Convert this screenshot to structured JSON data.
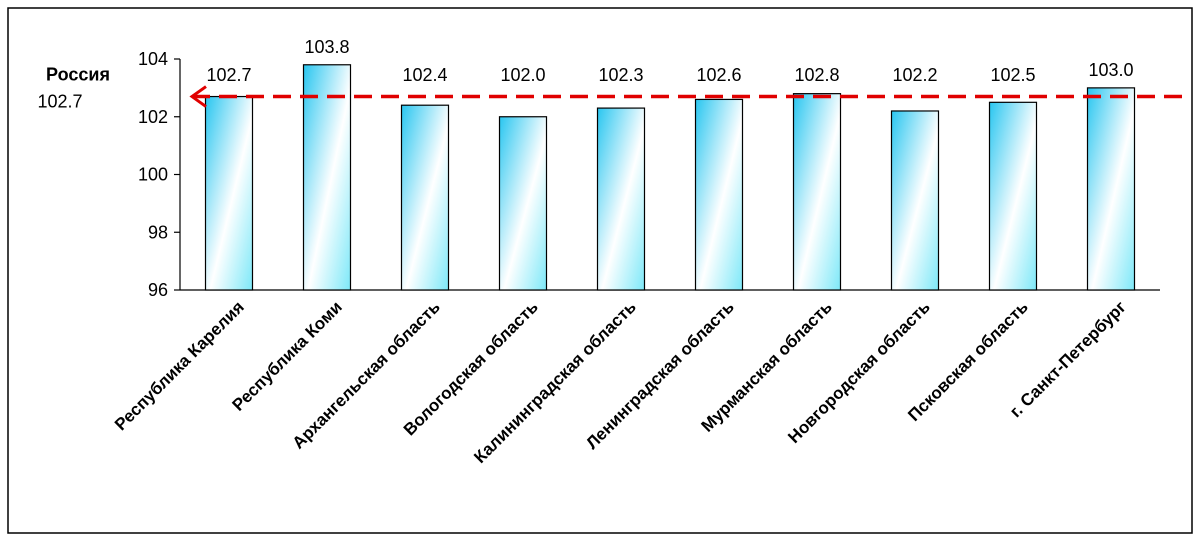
{
  "chart_data": {
    "type": "bar",
    "categories": [
      "Республика Карелия",
      "Республика Коми",
      "Архангельская область",
      "Вологодская область",
      "Калининградская область",
      "Ленинградская область",
      "Мурманская область",
      "Новгородская область",
      "Псковская область",
      "г. Санкт-Петербург"
    ],
    "values": [
      102.7,
      103.8,
      102.4,
      102.0,
      102.3,
      102.6,
      102.8,
      102.2,
      102.5,
      103.0
    ],
    "data_labels": [
      "102.7",
      "103.8",
      "102.4",
      "102.0",
      "102.3",
      "102.6",
      "102.8",
      "102.2",
      "102.5",
      "103.0"
    ],
    "ylim": [
      96,
      104
    ],
    "yticks": [
      96,
      98,
      100,
      102,
      104
    ],
    "grid": false,
    "legend": "none",
    "reference_line": {
      "label": "Россия",
      "value_label": "102.7",
      "value": 102.7,
      "color": "#e00000",
      "style": "dashed"
    },
    "bar_colors": {
      "top": "#29c6f0",
      "middle": "#ffffff",
      "bottom": "#7de8f8",
      "outline": "#000000"
    }
  }
}
